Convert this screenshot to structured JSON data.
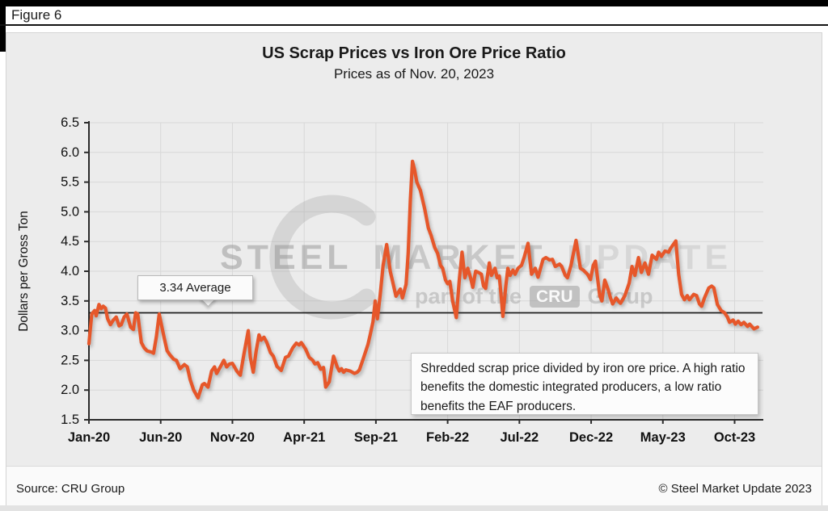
{
  "figure_label": "Figure 6",
  "title": "US Scrap Prices vs Iron Ore Price Ratio",
  "subtitle": "Prices as of Nov. 20, 2023",
  "callout": {
    "label": "3.34 Average"
  },
  "annotation": {
    "text": "Shredded scrap price divided by iron ore price. A high ratio benefits the domestic integrated producers, a low ratio benefits the EAF producers."
  },
  "watermark": {
    "word1": "STEEL",
    "word2": "MARKET",
    "word3": "UPDATE",
    "tag_prefix": "part of the",
    "tag_box": "CRU",
    "tag_suffix": "Group"
  },
  "footer": {
    "source": "Source: CRU Group",
    "copyright": "© Steel Market Update 2023"
  },
  "colors": {
    "series_line": "#E6572A",
    "average_line": "#1E1E1E",
    "grid": "#D8D8D8",
    "axis": "#2B2B2B",
    "panel_bg": "#ECECEC"
  },
  "chart_data": {
    "type": "line",
    "title": "US Scrap Prices vs Iron Ore Price Ratio",
    "subtitle": "Prices as of Nov. 20, 2023",
    "xlabel": "",
    "ylabel": "Dollars per Gross Ton",
    "ylim": [
      1.5,
      6.5
    ],
    "xlim_months": [
      0,
      47
    ],
    "grid": true,
    "legend": "none",
    "y_ticks": [
      {
        "v": 1.5,
        "label": "1.5"
      },
      {
        "v": 2.0,
        "label": "2.0"
      },
      {
        "v": 2.5,
        "label": "2.5"
      },
      {
        "v": 3.0,
        "label": "3.0"
      },
      {
        "v": 3.5,
        "label": "3.5"
      },
      {
        "v": 4.0,
        "label": "4.0"
      },
      {
        "v": 4.5,
        "label": "4.5"
      },
      {
        "v": 5.0,
        "label": "5.0"
      },
      {
        "v": 5.5,
        "label": "5.5"
      },
      {
        "v": 6.0,
        "label": "6.0"
      },
      {
        "v": 6.5,
        "label": "6.5"
      }
    ],
    "x_ticks": [
      {
        "m": 0,
        "label": "Jan-20"
      },
      {
        "m": 5,
        "label": "Jun-20"
      },
      {
        "m": 10,
        "label": "Nov-20"
      },
      {
        "m": 15,
        "label": "Apr-21"
      },
      {
        "m": 20,
        "label": "Sep-21"
      },
      {
        "m": 25,
        "label": "Feb-22"
      },
      {
        "m": 30,
        "label": "Jul-22"
      },
      {
        "m": 35,
        "label": "Dec-22"
      },
      {
        "m": 40,
        "label": "May-23"
      },
      {
        "m": 45,
        "label": "Oct-23"
      }
    ],
    "average": {
      "value": 3.3,
      "label": "3.34 Average"
    },
    "series": [
      {
        "name": "shredded-scrap-to-iron-ore-price-ratio",
        "points": [
          [
            0,
            2.78
          ],
          [
            0.2,
            3.28
          ],
          [
            0.4,
            3.34
          ],
          [
            0.5,
            3.25
          ],
          [
            0.7,
            3.44
          ],
          [
            0.85,
            3.37
          ],
          [
            1,
            3.41
          ],
          [
            1.15,
            3.38
          ],
          [
            1.3,
            3.2
          ],
          [
            1.5,
            3.1
          ],
          [
            1.7,
            3.18
          ],
          [
            1.9,
            3.23
          ],
          [
            2.1,
            3.08
          ],
          [
            2.25,
            3.1
          ],
          [
            2.45,
            3.23
          ],
          [
            2.65,
            3.28
          ],
          [
            2.9,
            3.06
          ],
          [
            3.1,
            3.02
          ],
          [
            3.25,
            3.3
          ],
          [
            3.4,
            3.28
          ],
          [
            3.65,
            2.8
          ],
          [
            3.85,
            2.71
          ],
          [
            4.05,
            2.66
          ],
          [
            4.35,
            2.64
          ],
          [
            4.5,
            2.62
          ],
          [
            4.7,
            2.9
          ],
          [
            4.9,
            3.28
          ],
          [
            5.05,
            3.1
          ],
          [
            5.25,
            2.87
          ],
          [
            5.45,
            2.66
          ],
          [
            5.65,
            2.59
          ],
          [
            5.9,
            2.52
          ],
          [
            6.1,
            2.5
          ],
          [
            6.35,
            2.36
          ],
          [
            6.65,
            2.43
          ],
          [
            6.85,
            2.39
          ],
          [
            7.05,
            2.18
          ],
          [
            7.3,
            2.0
          ],
          [
            7.6,
            1.87
          ],
          [
            7.9,
            2.09
          ],
          [
            8.05,
            2.11
          ],
          [
            8.3,
            2.05
          ],
          [
            8.55,
            2.32
          ],
          [
            8.75,
            2.39
          ],
          [
            8.9,
            2.28
          ],
          [
            9.2,
            2.41
          ],
          [
            9.4,
            2.5
          ],
          [
            9.6,
            2.39
          ],
          [
            9.8,
            2.44
          ],
          [
            10,
            2.45
          ],
          [
            10.3,
            2.32
          ],
          [
            10.55,
            2.25
          ],
          [
            10.8,
            2.6
          ],
          [
            11.1,
            3.0
          ],
          [
            11.25,
            2.55
          ],
          [
            11.45,
            2.3
          ],
          [
            11.65,
            2.65
          ],
          [
            11.85,
            2.93
          ],
          [
            12,
            2.84
          ],
          [
            12.2,
            2.89
          ],
          [
            12.4,
            2.8
          ],
          [
            12.65,
            2.63
          ],
          [
            12.85,
            2.57
          ],
          [
            13.1,
            2.4
          ],
          [
            13.4,
            2.33
          ],
          [
            13.7,
            2.55
          ],
          [
            13.9,
            2.57
          ],
          [
            14.2,
            2.71
          ],
          [
            14.45,
            2.79
          ],
          [
            14.65,
            2.76
          ],
          [
            14.8,
            2.8
          ],
          [
            15.1,
            2.69
          ],
          [
            15.35,
            2.55
          ],
          [
            15.6,
            2.5
          ],
          [
            15.75,
            2.44
          ],
          [
            15.95,
            2.46
          ],
          [
            16.15,
            2.35
          ],
          [
            16.35,
            2.38
          ],
          [
            16.5,
            2.05
          ],
          [
            16.75,
            2.14
          ],
          [
            17.05,
            2.57
          ],
          [
            17.3,
            2.39
          ],
          [
            17.45,
            2.32
          ],
          [
            17.6,
            2.36
          ],
          [
            17.75,
            2.3
          ],
          [
            17.9,
            2.34
          ],
          [
            18.2,
            2.32
          ],
          [
            18.5,
            2.28
          ],
          [
            18.7,
            2.3
          ],
          [
            18.85,
            2.34
          ],
          [
            19.15,
            2.55
          ],
          [
            19.45,
            2.77
          ],
          [
            19.6,
            2.93
          ],
          [
            19.8,
            3.15
          ],
          [
            19.95,
            3.5
          ],
          [
            20.1,
            3.2
          ],
          [
            20.3,
            3.6
          ],
          [
            20.5,
            4.1
          ],
          [
            20.75,
            4.45
          ],
          [
            21,
            4.0
          ],
          [
            21.2,
            3.79
          ],
          [
            21.4,
            3.58
          ],
          [
            21.7,
            3.7
          ],
          [
            21.85,
            3.55
          ],
          [
            22.1,
            3.78
          ],
          [
            22.25,
            4.3
          ],
          [
            22.4,
            5.2
          ],
          [
            22.55,
            5.85
          ],
          [
            22.7,
            5.7
          ],
          [
            22.85,
            5.5
          ],
          [
            23.1,
            5.36
          ],
          [
            23.4,
            5.05
          ],
          [
            23.65,
            4.73
          ],
          [
            23.85,
            4.6
          ],
          [
            24.1,
            4.4
          ],
          [
            24.3,
            4.3
          ],
          [
            24.5,
            4.1
          ],
          [
            24.65,
            4.05
          ],
          [
            24.85,
            3.85
          ],
          [
            25,
            3.79
          ],
          [
            25.15,
            3.83
          ],
          [
            25.35,
            3.5
          ],
          [
            25.6,
            3.22
          ],
          [
            25.8,
            3.82
          ],
          [
            26,
            4.32
          ],
          [
            26.2,
            3.89
          ],
          [
            26.4,
            4.05
          ],
          [
            26.6,
            3.89
          ],
          [
            26.75,
            3.73
          ],
          [
            26.95,
            4.0
          ],
          [
            27.15,
            3.98
          ],
          [
            27.35,
            3.95
          ],
          [
            27.5,
            3.75
          ],
          [
            27.65,
            3.71
          ],
          [
            27.9,
            4.14
          ],
          [
            28.05,
            3.93
          ],
          [
            28.3,
            4.05
          ],
          [
            28.45,
            3.89
          ],
          [
            28.6,
            3.92
          ],
          [
            28.75,
            3.52
          ],
          [
            28.85,
            3.24
          ],
          [
            29.05,
            3.75
          ],
          [
            29.2,
            4.05
          ],
          [
            29.35,
            3.93
          ],
          [
            29.55,
            4.02
          ],
          [
            29.7,
            3.95
          ],
          [
            29.9,
            4.05
          ],
          [
            30.15,
            4.1
          ],
          [
            30.35,
            4.25
          ],
          [
            30.6,
            4.47
          ],
          [
            30.85,
            3.95
          ],
          [
            31.1,
            4.05
          ],
          [
            31.3,
            3.9
          ],
          [
            31.65,
            4.2
          ],
          [
            31.85,
            4.23
          ],
          [
            32.1,
            4.19
          ],
          [
            32.3,
            4.2
          ],
          [
            32.5,
            4.08
          ],
          [
            32.8,
            4.12
          ],
          [
            32.95,
            4.08
          ],
          [
            33.2,
            3.93
          ],
          [
            33.35,
            3.89
          ],
          [
            33.6,
            4.1
          ],
          [
            33.95,
            4.52
          ],
          [
            34.25,
            4.05
          ],
          [
            34.45,
            4.02
          ],
          [
            34.75,
            3.95
          ],
          [
            34.95,
            3.86
          ],
          [
            35.15,
            4.1
          ],
          [
            35.3,
            4.17
          ],
          [
            35.6,
            3.59
          ],
          [
            35.75,
            3.5
          ],
          [
            35.95,
            3.85
          ],
          [
            36.2,
            3.68
          ],
          [
            36.35,
            3.55
          ],
          [
            36.5,
            3.45
          ],
          [
            36.75,
            3.55
          ],
          [
            36.9,
            3.5
          ],
          [
            37.05,
            3.46
          ],
          [
            37.35,
            3.59
          ],
          [
            37.65,
            3.8
          ],
          [
            37.85,
            4.08
          ],
          [
            38.05,
            3.93
          ],
          [
            38.3,
            4.23
          ],
          [
            38.5,
            3.98
          ],
          [
            38.75,
            4.14
          ],
          [
            39,
            3.95
          ],
          [
            39.25,
            4.27
          ],
          [
            39.55,
            4.2
          ],
          [
            39.7,
            4.32
          ],
          [
            39.9,
            4.25
          ],
          [
            40.15,
            4.34
          ],
          [
            40.4,
            4.32
          ],
          [
            40.55,
            4.39
          ],
          [
            40.9,
            4.51
          ],
          [
            41.1,
            3.95
          ],
          [
            41.3,
            3.61
          ],
          [
            41.5,
            3.52
          ],
          [
            41.7,
            3.59
          ],
          [
            41.85,
            3.52
          ],
          [
            42.15,
            3.61
          ],
          [
            42.35,
            3.59
          ],
          [
            42.55,
            3.45
          ],
          [
            42.7,
            3.41
          ],
          [
            42.9,
            3.55
          ],
          [
            43.2,
            3.72
          ],
          [
            43.4,
            3.75
          ],
          [
            43.55,
            3.72
          ],
          [
            43.8,
            3.44
          ],
          [
            44.05,
            3.34
          ],
          [
            44.3,
            3.3
          ],
          [
            44.5,
            3.23
          ],
          [
            44.65,
            3.14
          ],
          [
            44.9,
            3.18
          ],
          [
            45.05,
            3.11
          ],
          [
            45.25,
            3.16
          ],
          [
            45.45,
            3.1
          ],
          [
            45.65,
            3.14
          ],
          [
            45.9,
            3.07
          ],
          [
            46.05,
            3.11
          ],
          [
            46.35,
            3.03
          ],
          [
            46.6,
            3.06
          ]
        ]
      }
    ]
  }
}
